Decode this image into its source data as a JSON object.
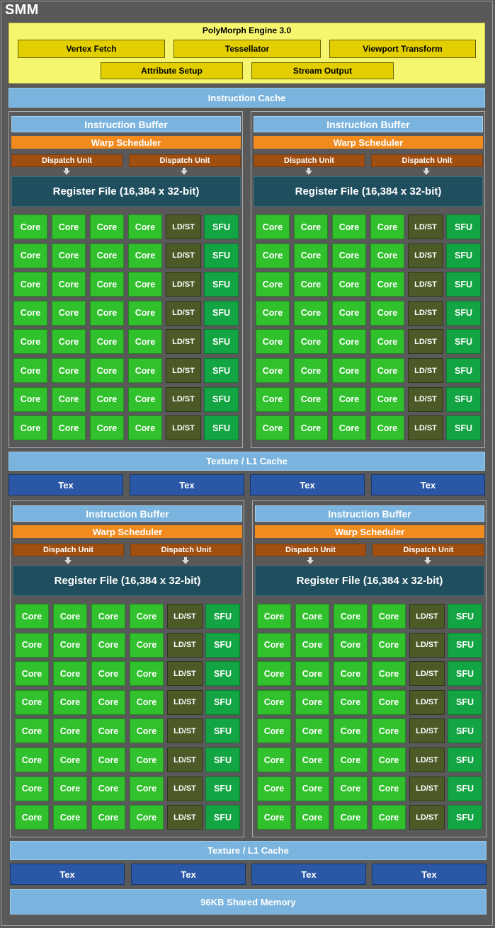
{
  "title": "SMM",
  "polymorph": {
    "title": "PolyMorph Engine 3.0",
    "units": [
      "Vertex Fetch",
      "Tessellator",
      "Viewport Transform",
      "Attribute Setup",
      "Stream Output"
    ]
  },
  "instruction_cache": "Instruction Cache",
  "sm_partition": {
    "instruction_buffer": "Instruction Buffer",
    "warp_scheduler": "Warp Scheduler",
    "dispatch_unit": "Dispatch Unit",
    "register_file": "Register File (16,384 x 32-bit)",
    "core": "Core",
    "ldst": "LD/ST",
    "sfu": "SFU"
  },
  "texture_l1": "Texture / L1 Cache",
  "tex": "Tex",
  "shared_memory": "96KB Shared Memory",
  "colors": {
    "background": "#595959",
    "polymorph_bg": "#f5f56e",
    "polymorph_unit": "#e3cf00",
    "cache": "#7ab4de",
    "tex": "#2a57a6",
    "warp_scheduler": "#f28b1e",
    "dispatch_unit": "#a04f10",
    "register_file": "#1f4e5e",
    "core": "#31c12d",
    "ldst": "#4b5a27",
    "sfu": "#13a543"
  }
}
